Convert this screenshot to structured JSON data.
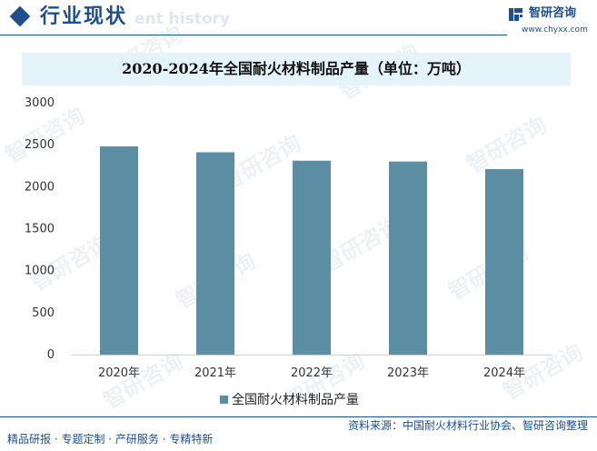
{
  "header": {
    "title": "行业现状",
    "watermark_text": "ent history",
    "logo_name": "智研咨询",
    "logo_url": "www.chyxx.com"
  },
  "watermark": {
    "text": "智研咨询"
  },
  "chart_data": {
    "type": "bar",
    "title": "2020-2024年全国耐火材料制品产量（单位：万吨）",
    "categories": [
      "2020年",
      "2021年",
      "2022年",
      "2023年",
      "2024年"
    ],
    "series": [
      {
        "name": "全国耐火材料制品产量",
        "values": [
          2480,
          2410,
          2310,
          2300,
          2210
        ],
        "color": "#5b8ea2"
      }
    ],
    "ylim": [
      0,
      3000
    ],
    "yticks": [
      0,
      500,
      1000,
      1500,
      2000,
      2500,
      3000
    ],
    "xlabel": "",
    "ylabel": "",
    "legend_position": "bottom"
  },
  "footer": {
    "source": "资料来源：中国耐火材料行业协会、智研咨询整理",
    "tagline": "精品研报 · 专题定制 · 产研服务 · 专精特新"
  },
  "colors": {
    "brand": "#1f4e8c",
    "bar": "#5b8ea2",
    "title_band": "#e5f4fb"
  }
}
